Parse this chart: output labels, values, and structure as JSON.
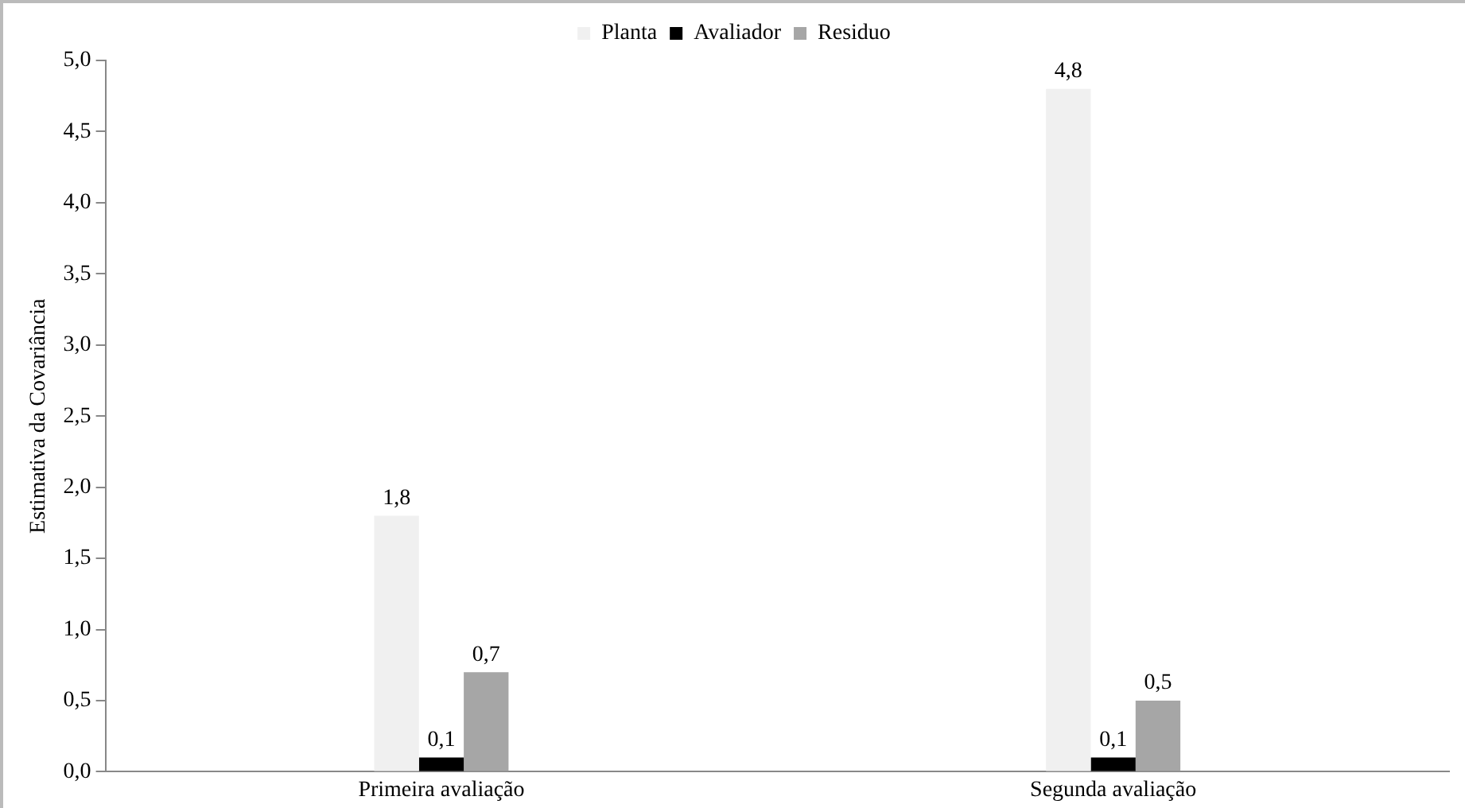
{
  "chart_data": {
    "type": "bar",
    "ylabel": "Estimativa da Covariância",
    "categories": [
      "Primeira avaliação",
      "Segunda avaliação"
    ],
    "series": [
      {
        "name": "Planta",
        "color": "#f0f0f0",
        "values": [
          1.8,
          4.8
        ],
        "value_labels": [
          "1,8",
          "4,8"
        ]
      },
      {
        "name": "Avaliador",
        "color": "#000000",
        "values": [
          0.1,
          0.1
        ],
        "value_labels": [
          "0,1",
          "0,1"
        ]
      },
      {
        "name": "Residuo",
        "color": "#a6a6a6",
        "values": [
          0.7,
          0.5
        ],
        "value_labels": [
          "0,7",
          "0,5"
        ]
      }
    ],
    "ylim": [
      0,
      5
    ],
    "yticks": [
      {
        "value": 0,
        "label": "0,0"
      },
      {
        "value": 0.5,
        "label": "0,5"
      },
      {
        "value": 1,
        "label": "1,0"
      },
      {
        "value": 1.5,
        "label": "1,5"
      },
      {
        "value": 2,
        "label": "2,0"
      },
      {
        "value": 2.5,
        "label": "2,5"
      },
      {
        "value": 3,
        "label": "3,0"
      },
      {
        "value": 3.5,
        "label": "3,5"
      },
      {
        "value": 4,
        "label": "4,0"
      },
      {
        "value": 4.5,
        "label": "4,5"
      },
      {
        "value": 5,
        "label": "5,0"
      }
    ],
    "grid": false,
    "legend": "top"
  }
}
